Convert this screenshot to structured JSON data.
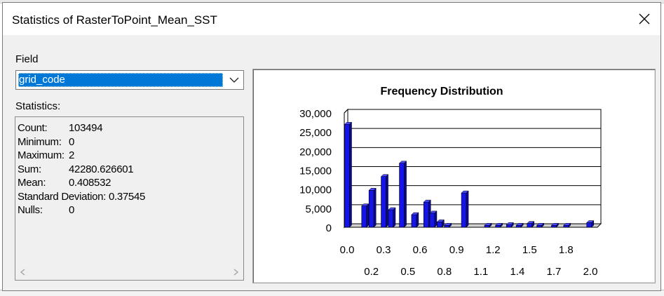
{
  "window": {
    "title": "Statistics of RasterToPoint_Mean_SST",
    "close_glyph": "×"
  },
  "field": {
    "label": "Field",
    "selected": "grid_code"
  },
  "statistics": {
    "label": "Statistics:",
    "rows": [
      {
        "name": "Count:",
        "value": "103494"
      },
      {
        "name": "Minimum:",
        "value": "0"
      },
      {
        "name": "Maximum:",
        "value": "2"
      },
      {
        "name": "Sum:",
        "value": "42280.626601"
      },
      {
        "name": "Mean:",
        "value": "0.408532"
      },
      {
        "name": "Standard Deviation:",
        "value": "0.37545"
      },
      {
        "name": "Nulls:",
        "value": "0"
      }
    ]
  },
  "chart_data": {
    "type": "bar",
    "title": "Frequency Distribution",
    "xlabel": "",
    "ylabel": "",
    "ylim": [
      0,
      30000
    ],
    "xlim": [
      0,
      2.0
    ],
    "y_ticks": [
      "30,000",
      "25,000",
      "20,000",
      "15,000",
      "10,000",
      "5,000",
      "0"
    ],
    "x_ticks_upper": [
      "0.0",
      "0.3",
      "0.6",
      "0.9",
      "1.2",
      "1.5",
      "1.8"
    ],
    "x_ticks_lower": [
      "0.2",
      "0.5",
      "0.8",
      "1.1",
      "1.4",
      "1.7",
      "2.0"
    ],
    "bar_color": "#1515e8",
    "bars": [
      {
        "x": 0.0,
        "y": 27000
      },
      {
        "x": 0.14,
        "y": 5600
      },
      {
        "x": 0.2,
        "y": 9700
      },
      {
        "x": 0.3,
        "y": 13300
      },
      {
        "x": 0.36,
        "y": 4600
      },
      {
        "x": 0.45,
        "y": 16800
      },
      {
        "x": 0.55,
        "y": 3300
      },
      {
        "x": 0.65,
        "y": 6600
      },
      {
        "x": 0.7,
        "y": 3700
      },
      {
        "x": 0.76,
        "y": 1400
      },
      {
        "x": 0.82,
        "y": 500
      },
      {
        "x": 0.96,
        "y": 9000
      },
      {
        "x": 1.15,
        "y": 500
      },
      {
        "x": 1.24,
        "y": 500
      },
      {
        "x": 1.33,
        "y": 700
      },
      {
        "x": 1.41,
        "y": 500
      },
      {
        "x": 1.5,
        "y": 1000
      },
      {
        "x": 1.58,
        "y": 500
      },
      {
        "x": 1.7,
        "y": 500
      },
      {
        "x": 1.8,
        "y": 500
      },
      {
        "x": 1.99,
        "y": 1200
      }
    ]
  }
}
